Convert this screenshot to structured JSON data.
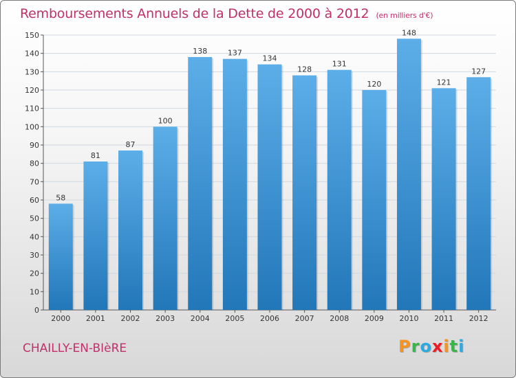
{
  "header": {
    "title": "Remboursements Annuels de la Dette de 2000 à 2012",
    "unit_note": "(en milliers d'€)"
  },
  "footer": {
    "city": "CHAILLY-EN-BIèRE",
    "logo_letters": [
      "P",
      "r",
      "o",
      "x",
      "i",
      "t",
      "i"
    ],
    "logo_colors": [
      "#f7931e",
      "#39b54a",
      "#29abe2",
      "#ed1c24",
      "#f7931e",
      "#39b54a",
      "#29abe2"
    ]
  },
  "colors": {
    "title": "#c0306a",
    "bar_light": "#5caee8",
    "bar_dark": "#2277b9",
    "grid": "#cfd8e2",
    "axis_text": "#333333"
  },
  "chart_data": {
    "type": "bar",
    "title": "Remboursements Annuels de la Dette de 2000 à 2012",
    "subtitle": "(en milliers d'€)",
    "categories": [
      "2000",
      "2001",
      "2002",
      "2003",
      "2004",
      "2005",
      "2006",
      "2007",
      "2008",
      "2009",
      "2010",
      "2011",
      "2012"
    ],
    "values": [
      58,
      81,
      87,
      100,
      138,
      137,
      134,
      128,
      131,
      120,
      148,
      121,
      127
    ],
    "data_labels": [
      "58",
      "81",
      "87",
      "100",
      "138",
      "137",
      "134",
      "128",
      "131",
      "120",
      "148",
      "121",
      "127"
    ],
    "ylim": [
      0,
      150
    ],
    "yticks": [
      0,
      10,
      20,
      30,
      40,
      50,
      60,
      70,
      80,
      90,
      100,
      110,
      120,
      130,
      140,
      150
    ],
    "xlabel": "",
    "ylabel": "",
    "grid": true
  }
}
